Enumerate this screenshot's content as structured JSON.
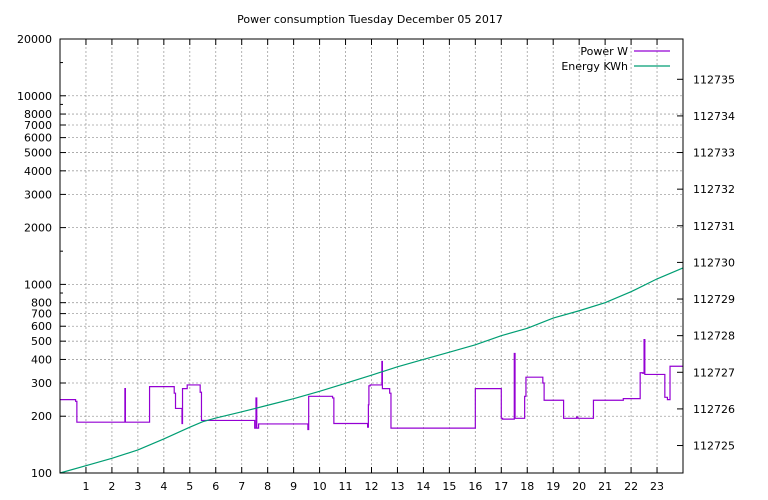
{
  "chart_data": {
    "type": "line",
    "title": "Power consumption Tuesday December 05 2017",
    "x_ticks": [
      1,
      2,
      3,
      4,
      5,
      6,
      7,
      8,
      9,
      10,
      11,
      12,
      13,
      14,
      15,
      16,
      17,
      18,
      19,
      20,
      21,
      22,
      23
    ],
    "xlim": [
      0,
      24
    ],
    "y_left": {
      "scale": "log",
      "lim": [
        100,
        20000
      ],
      "ticks": [
        100,
        200,
        300,
        400,
        500,
        600,
        700,
        800,
        1000,
        2000,
        3000,
        4000,
        5000,
        6000,
        7000,
        8000,
        10000,
        20000
      ],
      "tick_labels": [
        "100",
        "200",
        "300",
        "400",
        "500",
        "600",
        "700",
        "800",
        "1000",
        "2000",
        "3000",
        "4000",
        "5000",
        "6000",
        "7000",
        "8000",
        "10000",
        "20000"
      ]
    },
    "y_right": {
      "scale": "linear",
      "lim": [
        112724.25,
        112736.1
      ],
      "ticks": [
        112725,
        112726,
        112727,
        112728,
        112729,
        112730,
        112731,
        112732,
        112733,
        112734,
        112735
      ],
      "tick_labels": [
        "112725",
        "112726",
        "112727",
        "112728",
        "112729",
        "112730",
        "112731",
        "112732",
        "112733",
        "112734",
        "112735"
      ]
    },
    "grid": true,
    "legend_position": "top-right",
    "series": [
      {
        "name": "Power W",
        "axis": "left",
        "color": "#9400d3",
        "points": [
          [
            0,
            245
          ],
          [
            0.6,
            245
          ],
          [
            0.6,
            240
          ],
          [
            0.65,
            240
          ],
          [
            0.65,
            186
          ],
          [
            2.5,
            186
          ],
          [
            2.5,
            280
          ],
          [
            2.52,
            280
          ],
          [
            2.52,
            186
          ],
          [
            3.45,
            186
          ],
          [
            3.45,
            287
          ],
          [
            4.4,
            287
          ],
          [
            4.4,
            265
          ],
          [
            4.45,
            265
          ],
          [
            4.45,
            220
          ],
          [
            4.7,
            220
          ],
          [
            4.7,
            183
          ],
          [
            4.72,
            183
          ],
          [
            4.72,
            280
          ],
          [
            4.9,
            280
          ],
          [
            4.9,
            293
          ],
          [
            5.4,
            293
          ],
          [
            5.4,
            268
          ],
          [
            5.45,
            268
          ],
          [
            5.45,
            190
          ],
          [
            7.5,
            190
          ],
          [
            7.5,
            173
          ],
          [
            7.55,
            173
          ],
          [
            7.55,
            250
          ],
          [
            7.58,
            250
          ],
          [
            7.58,
            173
          ],
          [
            7.65,
            173
          ],
          [
            7.65,
            182
          ],
          [
            9.55,
            182
          ],
          [
            9.55,
            170
          ],
          [
            9.58,
            170
          ],
          [
            9.58,
            255
          ],
          [
            10.5,
            255
          ],
          [
            10.5,
            250
          ],
          [
            10.55,
            250
          ],
          [
            10.55,
            183
          ],
          [
            11.85,
            183
          ],
          [
            11.85,
            175
          ],
          [
            11.88,
            175
          ],
          [
            11.88,
            230
          ],
          [
            11.9,
            230
          ],
          [
            11.9,
            290
          ],
          [
            11.95,
            290
          ],
          [
            11.95,
            293
          ],
          [
            12.4,
            293
          ],
          [
            12.4,
            390
          ],
          [
            12.42,
            390
          ],
          [
            12.42,
            280
          ],
          [
            12.7,
            280
          ],
          [
            12.7,
            265
          ],
          [
            12.75,
            265
          ],
          [
            12.75,
            173
          ],
          [
            16.0,
            173
          ],
          [
            16.0,
            280
          ],
          [
            17.0,
            280
          ],
          [
            17.0,
            195
          ],
          [
            17.05,
            195
          ],
          [
            17.05,
            193
          ],
          [
            17.5,
            193
          ],
          [
            17.5,
            430
          ],
          [
            17.53,
            430
          ],
          [
            17.53,
            195
          ],
          [
            17.9,
            195
          ],
          [
            17.9,
            255
          ],
          [
            17.95,
            255
          ],
          [
            17.95,
            322
          ],
          [
            18.6,
            322
          ],
          [
            18.6,
            300
          ],
          [
            18.65,
            300
          ],
          [
            18.65,
            243
          ],
          [
            19.4,
            243
          ],
          [
            19.4,
            195
          ],
          [
            19.9,
            195
          ],
          [
            19.9,
            198
          ],
          [
            19.95,
            198
          ],
          [
            19.95,
            195
          ],
          [
            20.55,
            195
          ],
          [
            20.55,
            243
          ],
          [
            21.7,
            243
          ],
          [
            21.7,
            248
          ],
          [
            22.35,
            248
          ],
          [
            22.35,
            340
          ],
          [
            22.45,
            340
          ],
          [
            22.45,
            338
          ],
          [
            22.5,
            338
          ],
          [
            22.5,
            510
          ],
          [
            22.53,
            510
          ],
          [
            22.53,
            333
          ],
          [
            23.3,
            333
          ],
          [
            23.3,
            252
          ],
          [
            23.4,
            252
          ],
          [
            23.4,
            245
          ],
          [
            23.5,
            245
          ],
          [
            23.5,
            368
          ],
          [
            24,
            368
          ]
        ]
      },
      {
        "name": "Energy KWh",
        "axis": "right",
        "color": "#009e73",
        "points": [
          [
            0,
            112724.25
          ],
          [
            1,
            112724.45
          ],
          [
            2,
            112724.65
          ],
          [
            3,
            112724.88
          ],
          [
            4,
            112725.18
          ],
          [
            5,
            112725.5
          ],
          [
            5.5,
            112725.65
          ],
          [
            6,
            112725.75
          ],
          [
            7,
            112725.92
          ],
          [
            8,
            112726.1
          ],
          [
            9,
            112726.28
          ],
          [
            10,
            112726.48
          ],
          [
            11,
            112726.7
          ],
          [
            12,
            112726.92
          ],
          [
            13,
            112727.15
          ],
          [
            14,
            112727.35
          ],
          [
            15,
            112727.55
          ],
          [
            16,
            112727.75
          ],
          [
            17,
            112728.0
          ],
          [
            18,
            112728.2
          ],
          [
            19,
            112728.48
          ],
          [
            20,
            112728.68
          ],
          [
            21,
            112728.9
          ],
          [
            22,
            112729.2
          ],
          [
            23,
            112729.55
          ],
          [
            24,
            112729.85
          ]
        ]
      }
    ]
  }
}
